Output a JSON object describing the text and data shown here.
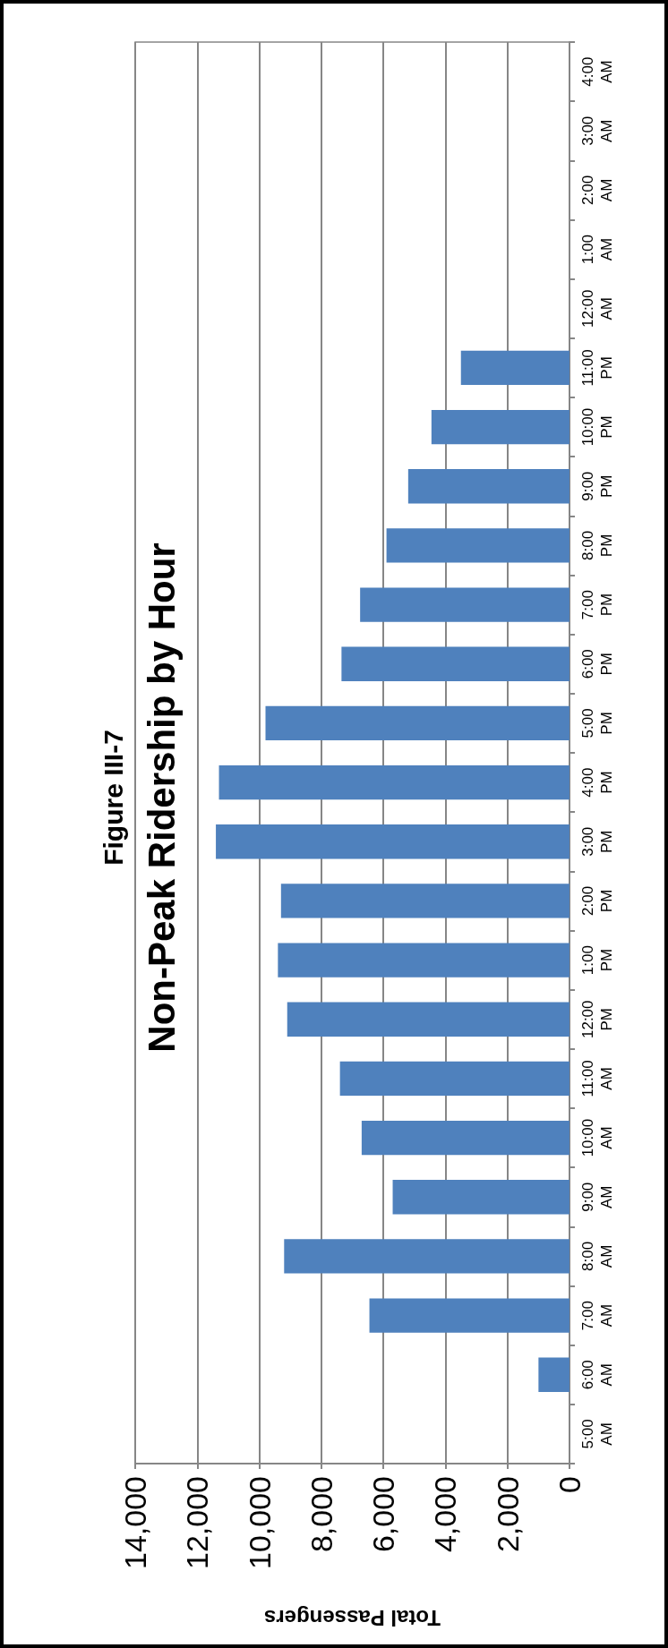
{
  "chart_data": {
    "type": "bar",
    "orientation": "horizontal",
    "subtitle": "Figure III-7",
    "title": "Non-Peak Ridership by Hour",
    "xlabel": "Total Passengers",
    "categories": [
      "4:00\nAM",
      "3:00\nAM",
      "2:00\nAM",
      "1:00\nAM",
      "12:00\nAM",
      "11:00\nPM",
      "10:00\nPM",
      "9:00\nPM",
      "8:00\nPM",
      "7:00\nPM",
      "6:00\nPM",
      "5:00\nPM",
      "4:00\nPM",
      "3:00\nPM",
      "2:00\nPM",
      "1:00\nPM",
      "12:00\nPM",
      "11:00\nAM",
      "10:00\nAM",
      "9:00\nAM",
      "8:00\nAM",
      "7:00\nAM",
      "6:00\nAM",
      "5:00\nAM"
    ],
    "values": [
      null,
      null,
      null,
      null,
      null,
      3500,
      4450,
      5200,
      5900,
      6750,
      7350,
      9800,
      11300,
      11400,
      9300,
      9400,
      9100,
      7400,
      6700,
      5700,
      9200,
      6450,
      1000,
      null
    ],
    "color": "#4f81bd",
    "xlim": [
      14000,
      0
    ],
    "xticks": [
      0,
      {
        "value": 2000,
        "label": "2,000"
      },
      {
        "value": 4000,
        "label": "4,000"
      },
      {
        "value": 6000,
        "label": "6,000"
      },
      {
        "value": 8000,
        "label": "8,000"
      },
      {
        "value": 10000,
        "label": "10,000"
      },
      {
        "value": 12000,
        "label": "12,000"
      },
      {
        "value": 14000,
        "label": "14,000"
      }
    ],
    "grid": "x"
  }
}
